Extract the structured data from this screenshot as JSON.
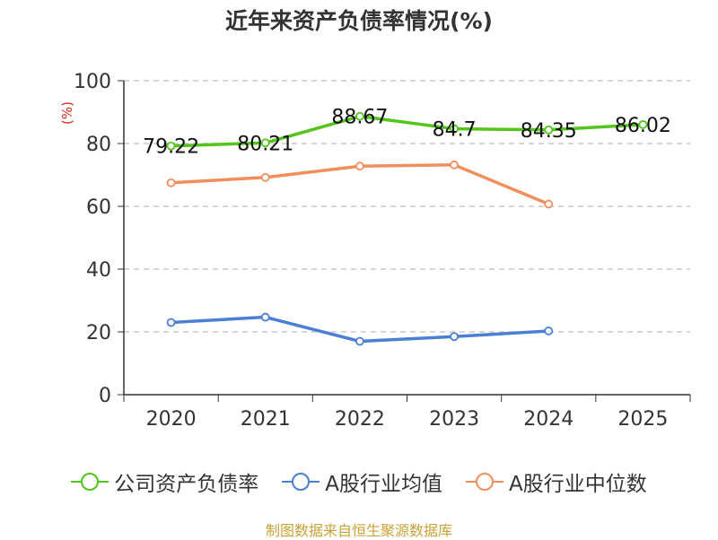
{
  "chart_data": {
    "type": "line",
    "title": "近年来资产负债率情况(%)",
    "ylabel": "(%)",
    "xlabel": "",
    "categories": [
      "2020",
      "2021",
      "2022",
      "2023",
      "2024",
      "2025"
    ],
    "ylim": [
      0,
      100
    ],
    "yticks": [
      0,
      20,
      40,
      60,
      80,
      100
    ],
    "grid": true,
    "legend_position": "bottom",
    "series": [
      {
        "name": "公司资产负债率",
        "color": "#52c41a",
        "values": [
          79.22,
          80.21,
          88.67,
          84.7,
          84.35,
          86.02
        ],
        "labels": [
          "79.22",
          "80.21",
          "88.67",
          "84.7",
          "84.35",
          "86.02"
        ]
      },
      {
        "name": "A股行业均值",
        "color": "#4a7fd6",
        "values": [
          23,
          24.7,
          17,
          18.5,
          20.3,
          null
        ]
      },
      {
        "name": "A股行业中位数",
        "color": "#f28e5c",
        "values": [
          67.5,
          69.2,
          72.8,
          73.2,
          60.7,
          null
        ]
      }
    ]
  },
  "source": "制图数据来自恒生聚源数据库"
}
